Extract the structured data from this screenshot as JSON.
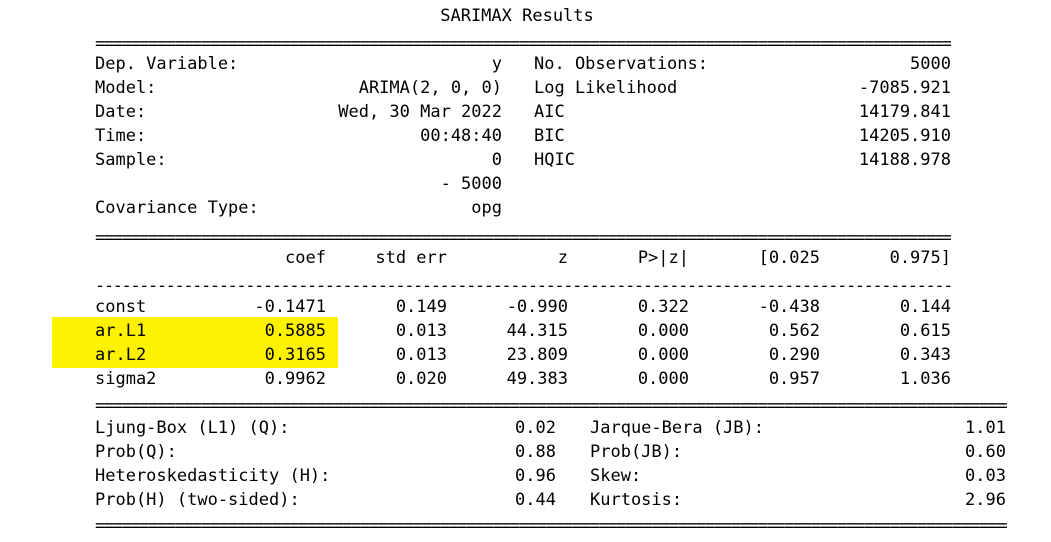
{
  "title": "SARIMAX Results",
  "rules": {
    "equals": "========================================================================================================================",
    "dashes": "------------------------------------------------------------------------------------------------------------------------"
  },
  "summary": {
    "left": [
      {
        "label": "Dep. Variable:",
        "value": "y"
      },
      {
        "label": "Model:",
        "value": "ARIMA(2, 0, 0)"
      },
      {
        "label": "Date:",
        "value": "Wed, 30 Mar 2022"
      },
      {
        "label": "Time:",
        "value": "00:48:40"
      },
      {
        "label": "Sample:",
        "value": "0"
      },
      {
        "label": "",
        "value": "- 5000"
      },
      {
        "label": "Covariance Type:",
        "value": "opg"
      }
    ],
    "right": [
      {
        "label": "No. Observations:",
        "value": "5000"
      },
      {
        "label": "Log Likelihood",
        "value": "-7085.921"
      },
      {
        "label": "AIC",
        "value": "14179.841"
      },
      {
        "label": "BIC",
        "value": "14205.910"
      },
      {
        "label": "HQIC",
        "value": "14188.978"
      }
    ]
  },
  "coef_table": {
    "headers": [
      "coef",
      "std err",
      "z",
      "P>|z|",
      "[0.025",
      "0.975]"
    ],
    "rows": [
      {
        "name": "const",
        "values": [
          "-0.1471",
          "0.149",
          "-0.990",
          "0.322",
          "-0.438",
          "0.144"
        ],
        "highlight": false
      },
      {
        "name": "ar.L1",
        "values": [
          "0.5885",
          "0.013",
          "44.315",
          "0.000",
          "0.562",
          "0.615"
        ],
        "highlight": true
      },
      {
        "name": "ar.L2",
        "values": [
          "0.3165",
          "0.013",
          "23.809",
          "0.000",
          "0.290",
          "0.343"
        ],
        "highlight": true
      },
      {
        "name": "sigma2",
        "values": [
          "0.9962",
          "0.020",
          "49.383",
          "0.000",
          "0.957",
          "1.036"
        ],
        "highlight": false
      }
    ]
  },
  "diagnostics": {
    "left": [
      {
        "label": "Ljung-Box (L1) (Q):",
        "value": "0.02"
      },
      {
        "label": "Prob(Q):",
        "value": "0.88"
      },
      {
        "label": "Heteroskedasticity (H):",
        "value": "0.96"
      },
      {
        "label": "Prob(H) (two-sided):",
        "value": "0.44"
      }
    ],
    "right": [
      {
        "label": "Jarque-Bera (JB):",
        "value": "1.01"
      },
      {
        "label": "Prob(JB):",
        "value": "0.60"
      },
      {
        "label": "Skew:",
        "value": "0.03"
      },
      {
        "label": "Kurtosis:",
        "value": "2.96"
      }
    ]
  },
  "colors": {
    "highlight": "#fff200",
    "text": "#000000",
    "background": "#ffffff"
  }
}
